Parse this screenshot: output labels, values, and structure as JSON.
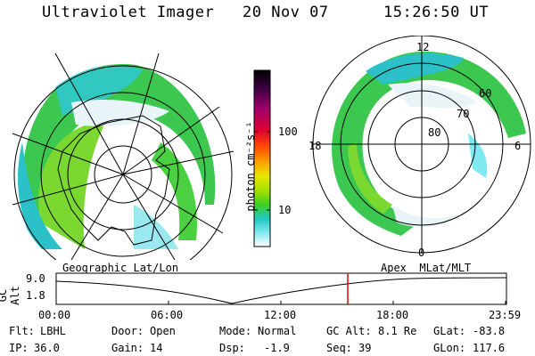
{
  "header": {
    "title": "Ultraviolet Imager",
    "date": "20 Nov 07",
    "time": "15:26:50 UT"
  },
  "colorbar": {
    "label": "photon cm⁻²s⁻¹",
    "ticks": [
      "100",
      "10"
    ],
    "colors": [
      "#000000",
      "#3a0040",
      "#a0006a",
      "#e00030",
      "#ff5000",
      "#ffa000",
      "#e6e600",
      "#a8e000",
      "#40d020",
      "#20c8c0",
      "#80e8f0",
      "#ffffff"
    ]
  },
  "left_map": {
    "title": "Geographic Lat/Lon"
  },
  "right_map": {
    "title": "Apex  MLat/MLT",
    "hour_labels": [
      "12",
      "18",
      "6",
      "0"
    ],
    "lat_labels": [
      "60",
      "70",
      "80"
    ]
  },
  "altitude_plot": {
    "ylabel": "GC Alt",
    "yticks": [
      "9.0",
      "1.8"
    ],
    "xticks": [
      "00:00",
      "06:00",
      "12:00",
      "18:00",
      "23:59"
    ],
    "current_marker_time": "15:26:50"
  },
  "info": {
    "flt_label": "Flt:",
    "flt_value": "LBHL",
    "ip_label": "IP:",
    "ip_value": "36.0",
    "door_label": "Door:",
    "door_value": "Open",
    "gain_label": "Gain:",
    "gain_value": "14",
    "mode_label": "Mode:",
    "mode_value": "Normal",
    "dsp_label": "Dsp:",
    "dsp_value": "-1.9",
    "gcalt_label": "GC Alt:",
    "gcalt_value": "8.1 Re",
    "seq_label": "Seq:",
    "seq_value": "39",
    "glat_label": "GLat:",
    "glat_value": "-83.8",
    "glon_label": "GLon:",
    "glon_value": "117.6"
  }
}
